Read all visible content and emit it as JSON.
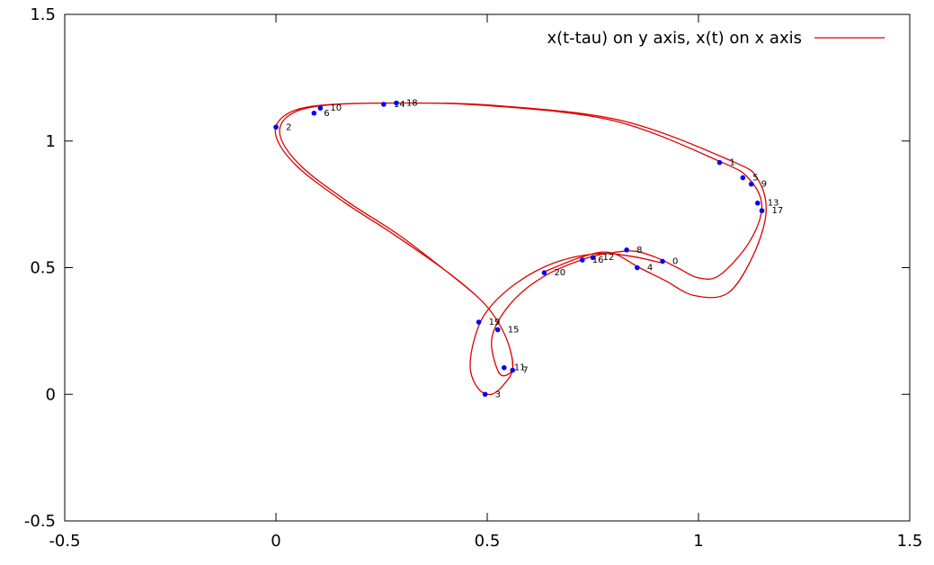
{
  "chart_data": {
    "type": "line",
    "title": "",
    "xlabel": "",
    "ylabel": "",
    "xlim": [
      -0.5,
      1.5
    ],
    "ylim": [
      -0.5,
      1.5
    ],
    "xticks": [
      "-0.5",
      "0",
      "0.5",
      "1",
      "1.5"
    ],
    "yticks": [
      "-0.5",
      "0",
      "0.5",
      "1",
      "1.5"
    ],
    "grid": false,
    "legend_position": "top-right",
    "series": [
      {
        "name": "x(t-tau) on y axis, x(t) on x axis",
        "color": "#dd0000",
        "x": [
          0.91,
          0.84,
          0.76,
          0.66,
          0.57,
          0.5,
          0.47,
          0.46,
          0.48,
          0.51,
          0.54,
          0.56,
          0.55,
          0.52,
          0.48,
          0.4,
          0.28,
          0.16,
          0.05,
          0.0,
          0.02,
          0.1,
          0.28,
          0.5,
          0.8,
          1.05,
          1.12,
          1.15,
          1.12,
          1.05,
          1.0,
          0.95,
          0.9,
          0.85,
          0.8,
          0.74,
          0.65,
          0.58,
          0.53,
          0.51,
          0.53,
          0.56,
          0.55,
          0.52,
          0.48,
          0.4,
          0.29,
          0.17,
          0.06,
          0.01,
          0.03,
          0.11,
          0.29,
          0.52,
          0.82,
          1.08,
          1.14,
          1.16,
          1.13,
          1.07,
          0.99,
          0.92,
          0.86,
          0.79,
          0.72,
          0.63
        ],
        "y": [
          0.52,
          0.545,
          0.555,
          0.52,
          0.44,
          0.33,
          0.22,
          0.1,
          0.02,
          0.0,
          0.04,
          0.1,
          0.2,
          0.3,
          0.38,
          0.49,
          0.63,
          0.76,
          0.9,
          1.02,
          1.1,
          1.14,
          1.15,
          1.14,
          1.08,
          0.92,
          0.85,
          0.74,
          0.6,
          0.47,
          0.46,
          0.5,
          0.54,
          0.565,
          0.56,
          0.54,
          0.48,
          0.4,
          0.3,
          0.2,
          0.08,
          0.1,
          0.2,
          0.3,
          0.38,
          0.49,
          0.63,
          0.76,
          0.9,
          1.02,
          1.1,
          1.14,
          1.15,
          1.14,
          1.08,
          0.92,
          0.85,
          0.72,
          0.55,
          0.4,
          0.39,
          0.45,
          0.5,
          0.56,
          0.54,
          0.48
        ]
      }
    ],
    "points": [
      {
        "label": "0",
        "x": 0.915,
        "y": 0.525
      },
      {
        "label": "1",
        "x": 1.05,
        "y": 0.915
      },
      {
        "label": "2",
        "x": 0.0,
        "y": 1.055
      },
      {
        "label": "3",
        "x": 0.495,
        "y": 0.0
      },
      {
        "label": "4",
        "x": 0.855,
        "y": 0.5
      },
      {
        "label": "5",
        "x": 1.105,
        "y": 0.855
      },
      {
        "label": "6",
        "x": 0.09,
        "y": 1.11
      },
      {
        "label": "7",
        "x": 0.56,
        "y": 0.095
      },
      {
        "label": "8",
        "x": 0.83,
        "y": 0.57
      },
      {
        "label": "9",
        "x": 1.125,
        "y": 0.83
      },
      {
        "label": "10",
        "x": 0.105,
        "y": 1.13
      },
      {
        "label": "11",
        "x": 0.54,
        "y": 0.105
      },
      {
        "label": "12",
        "x": 0.75,
        "y": 0.54
      },
      {
        "label": "13",
        "x": 1.14,
        "y": 0.755
      },
      {
        "label": "14",
        "x": 0.255,
        "y": 1.145
      },
      {
        "label": "15",
        "x": 0.525,
        "y": 0.255
      },
      {
        "label": "16",
        "x": 0.725,
        "y": 0.53
      },
      {
        "label": "17",
        "x": 1.15,
        "y": 0.725
      },
      {
        "label": "18",
        "x": 0.285,
        "y": 1.15
      },
      {
        "label": "19",
        "x": 0.48,
        "y": 0.285
      },
      {
        "label": "20",
        "x": 0.635,
        "y": 0.48
      }
    ]
  }
}
